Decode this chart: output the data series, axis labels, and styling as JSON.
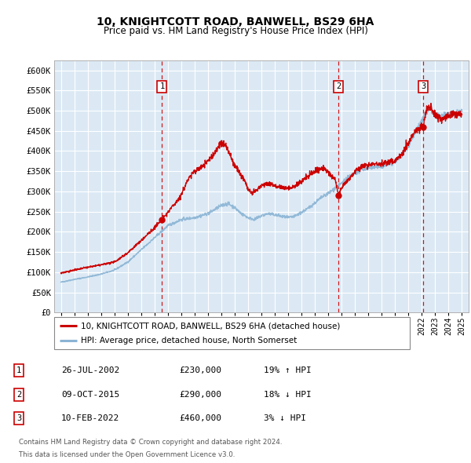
{
  "title1": "10, KNIGHTCOTT ROAD, BANWELL, BS29 6HA",
  "title2": "Price paid vs. HM Land Registry's House Price Index (HPI)",
  "bg_color": "#dce9f5",
  "grid_color": "#ffffff",
  "red_color": "#cc0000",
  "blue_color": "#8ab4d4",
  "transactions": [
    {
      "num": 1,
      "date_x": 2002.57,
      "price": 230000,
      "label": "26-JUL-2002",
      "pct": "19%",
      "dir": "↑"
    },
    {
      "num": 2,
      "date_x": 2015.77,
      "price": 290000,
      "label": "09-OCT-2015",
      "pct": "18%",
      "dir": "↓"
    },
    {
      "num": 3,
      "date_x": 2022.11,
      "price": 460000,
      "label": "10-FEB-2022",
      "pct": "3%",
      "dir": "↓"
    }
  ],
  "legend_line1": "10, KNIGHTCOTT ROAD, BANWELL, BS29 6HA (detached house)",
  "legend_line2": "HPI: Average price, detached house, North Somerset",
  "footer1": "Contains HM Land Registry data © Crown copyright and database right 2024.",
  "footer2": "This data is licensed under the Open Government Licence v3.0.",
  "ylim": [
    0,
    625000
  ],
  "xlim_start": 1994.5,
  "xlim_end": 2025.5,
  "yticks": [
    0,
    50000,
    100000,
    150000,
    200000,
    250000,
    300000,
    350000,
    400000,
    450000,
    500000,
    550000,
    600000
  ],
  "ytick_labels": [
    "£0",
    "£50K",
    "£100K",
    "£150K",
    "£200K",
    "£250K",
    "£300K",
    "£350K",
    "£400K",
    "£450K",
    "£500K",
    "£550K",
    "£600K"
  ],
  "hpi_waypoints": [
    [
      1995.0,
      75000
    ],
    [
      1996.0,
      82000
    ],
    [
      1997.0,
      88000
    ],
    [
      1998.0,
      95000
    ],
    [
      1999.0,
      105000
    ],
    [
      2000.0,
      125000
    ],
    [
      2001.0,
      155000
    ],
    [
      2002.0,
      185000
    ],
    [
      2003.0,
      215000
    ],
    [
      2004.0,
      230000
    ],
    [
      2005.0,
      235000
    ],
    [
      2006.0,
      245000
    ],
    [
      2007.0,
      265000
    ],
    [
      2007.5,
      270000
    ],
    [
      2008.0,
      260000
    ],
    [
      2008.5,
      245000
    ],
    [
      2009.0,
      235000
    ],
    [
      2009.5,
      230000
    ],
    [
      2010.0,
      240000
    ],
    [
      2010.5,
      245000
    ],
    [
      2011.0,
      242000
    ],
    [
      2011.5,
      238000
    ],
    [
      2012.0,
      235000
    ],
    [
      2012.5,
      238000
    ],
    [
      2013.0,
      248000
    ],
    [
      2013.5,
      258000
    ],
    [
      2014.0,
      272000
    ],
    [
      2014.5,
      285000
    ],
    [
      2015.0,
      295000
    ],
    [
      2015.5,
      308000
    ],
    [
      2016.0,
      320000
    ],
    [
      2016.5,
      335000
    ],
    [
      2017.0,
      345000
    ],
    [
      2017.5,
      355000
    ],
    [
      2018.0,
      358000
    ],
    [
      2018.5,
      360000
    ],
    [
      2019.0,
      362000
    ],
    [
      2019.5,
      368000
    ],
    [
      2020.0,
      372000
    ],
    [
      2020.5,
      390000
    ],
    [
      2021.0,
      415000
    ],
    [
      2021.5,
      445000
    ],
    [
      2022.0,
      475000
    ],
    [
      2022.5,
      505000
    ],
    [
      2023.0,
      490000
    ],
    [
      2023.5,
      485000
    ],
    [
      2024.0,
      490000
    ],
    [
      2024.5,
      495000
    ],
    [
      2025.0,
      498000
    ]
  ],
  "red_waypoints": [
    [
      1995.0,
      98000
    ],
    [
      1996.0,
      105000
    ],
    [
      1997.0,
      112000
    ],
    [
      1998.0,
      118000
    ],
    [
      1999.0,
      125000
    ],
    [
      2000.0,
      148000
    ],
    [
      2001.0,
      178000
    ],
    [
      2002.0,
      210000
    ],
    [
      2002.57,
      230000
    ],
    [
      2003.0,
      248000
    ],
    [
      2004.0,
      290000
    ],
    [
      2004.5,
      330000
    ],
    [
      2005.0,
      350000
    ],
    [
      2005.5,
      360000
    ],
    [
      2006.0,
      375000
    ],
    [
      2006.5,
      395000
    ],
    [
      2007.0,
      420000
    ],
    [
      2007.3,
      415000
    ],
    [
      2007.6,
      395000
    ],
    [
      2007.9,
      370000
    ],
    [
      2008.2,
      355000
    ],
    [
      2008.5,
      340000
    ],
    [
      2008.8,
      325000
    ],
    [
      2009.0,
      305000
    ],
    [
      2009.3,
      295000
    ],
    [
      2009.6,
      300000
    ],
    [
      2010.0,
      315000
    ],
    [
      2010.5,
      320000
    ],
    [
      2011.0,
      315000
    ],
    [
      2011.5,
      310000
    ],
    [
      2012.0,
      308000
    ],
    [
      2012.5,
      312000
    ],
    [
      2013.0,
      325000
    ],
    [
      2013.5,
      338000
    ],
    [
      2014.0,
      350000
    ],
    [
      2014.5,
      358000
    ],
    [
      2015.0,
      348000
    ],
    [
      2015.5,
      330000
    ],
    [
      2015.77,
      290000
    ],
    [
      2016.0,
      310000
    ],
    [
      2016.5,
      330000
    ],
    [
      2017.0,
      348000
    ],
    [
      2017.5,
      360000
    ],
    [
      2018.0,
      365000
    ],
    [
      2018.5,
      370000
    ],
    [
      2019.0,
      368000
    ],
    [
      2019.5,
      372000
    ],
    [
      2020.0,
      375000
    ],
    [
      2020.5,
      395000
    ],
    [
      2021.0,
      420000
    ],
    [
      2021.5,
      448000
    ],
    [
      2022.0,
      462000
    ],
    [
      2022.11,
      460000
    ],
    [
      2022.3,
      500000
    ],
    [
      2022.6,
      510000
    ],
    [
      2023.0,
      490000
    ],
    [
      2023.5,
      480000
    ],
    [
      2024.0,
      488000
    ],
    [
      2024.5,
      492000
    ],
    [
      2025.0,
      490000
    ]
  ]
}
